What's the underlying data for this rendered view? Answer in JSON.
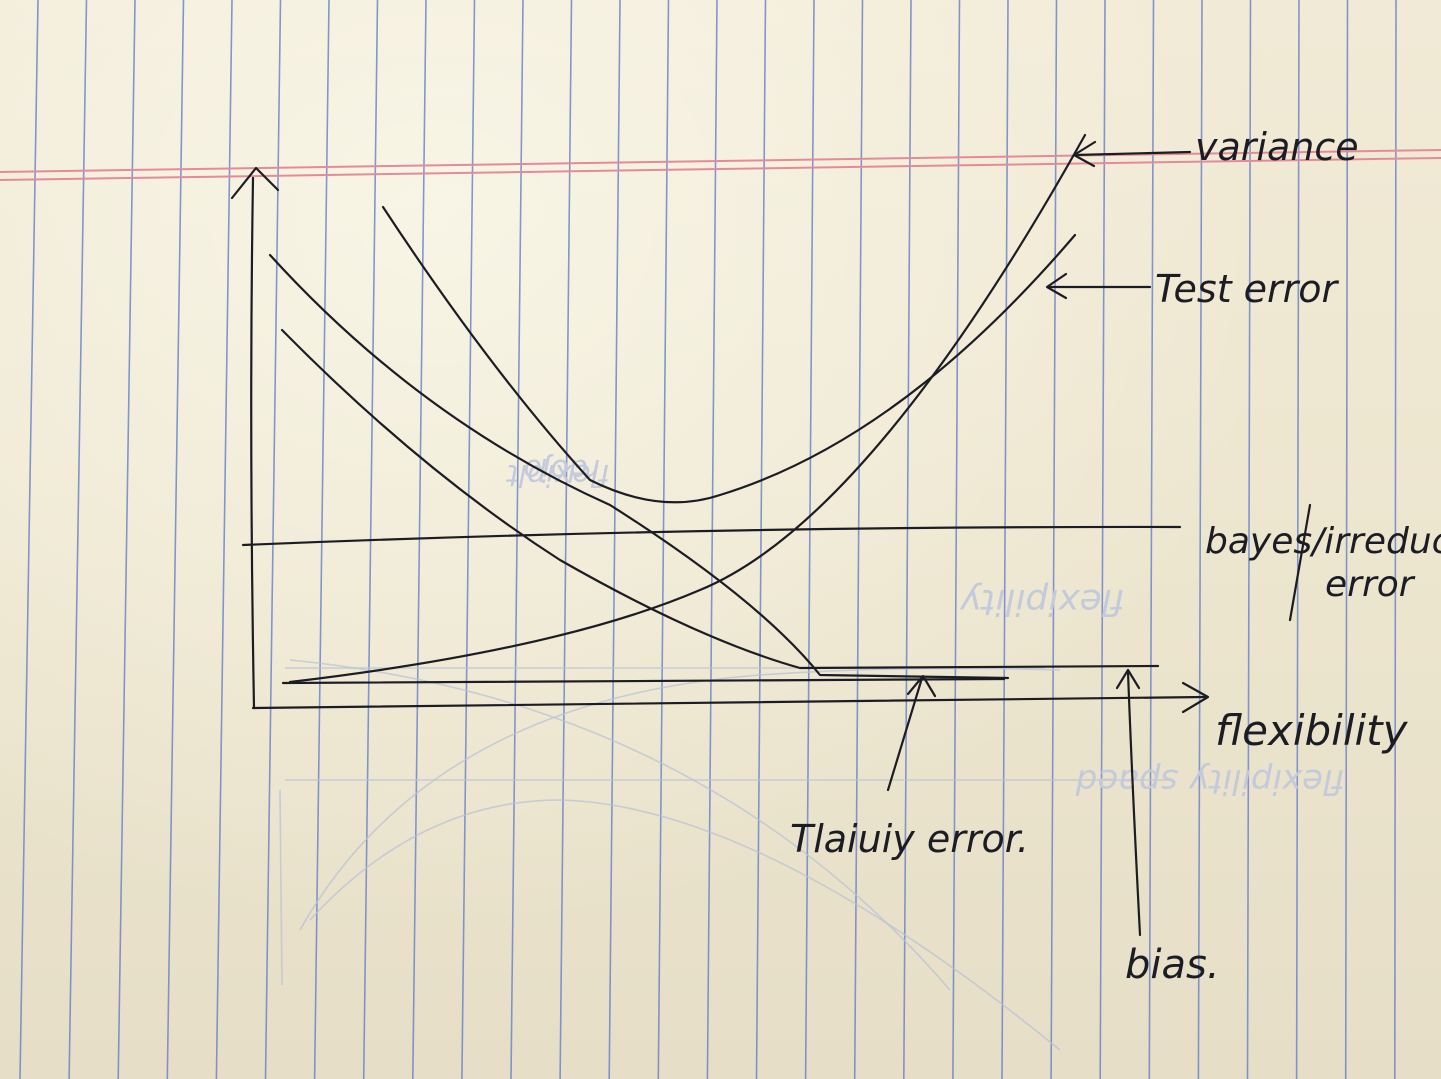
{
  "labels": {
    "variance": "variance",
    "test_error": "Test error",
    "bayes_line1": "bayes/irreducib",
    "bayes_line2": "error",
    "x_axis": "flexibility",
    "training_error": "Tlaiuiy error.",
    "bias": "bias."
  },
  "colors": {
    "paper": "#f1ead6",
    "blue_rule": "#6f86c9",
    "red_margin": "#e58a9a",
    "ink": "#1c1c24"
  }
}
